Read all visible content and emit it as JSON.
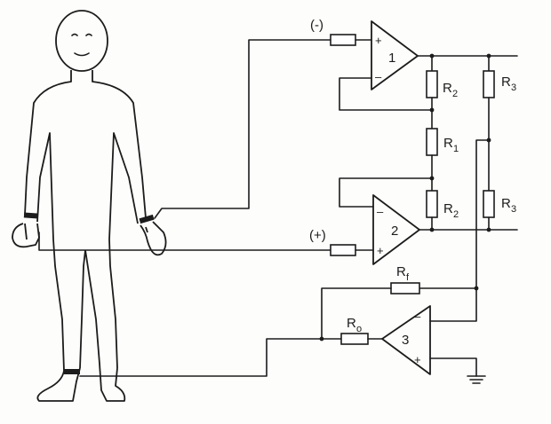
{
  "labels": {
    "input_minus": "(-)",
    "input_plus": "(+)",
    "amp1": "1",
    "amp2": "2",
    "amp3": "3",
    "r_main": "R",
    "sub_1": "1",
    "sub_2": "2",
    "sub_3": "3",
    "sub_f": "f",
    "sub_o": "o",
    "plus_sign": "+",
    "minus_sign": "–"
  }
}
